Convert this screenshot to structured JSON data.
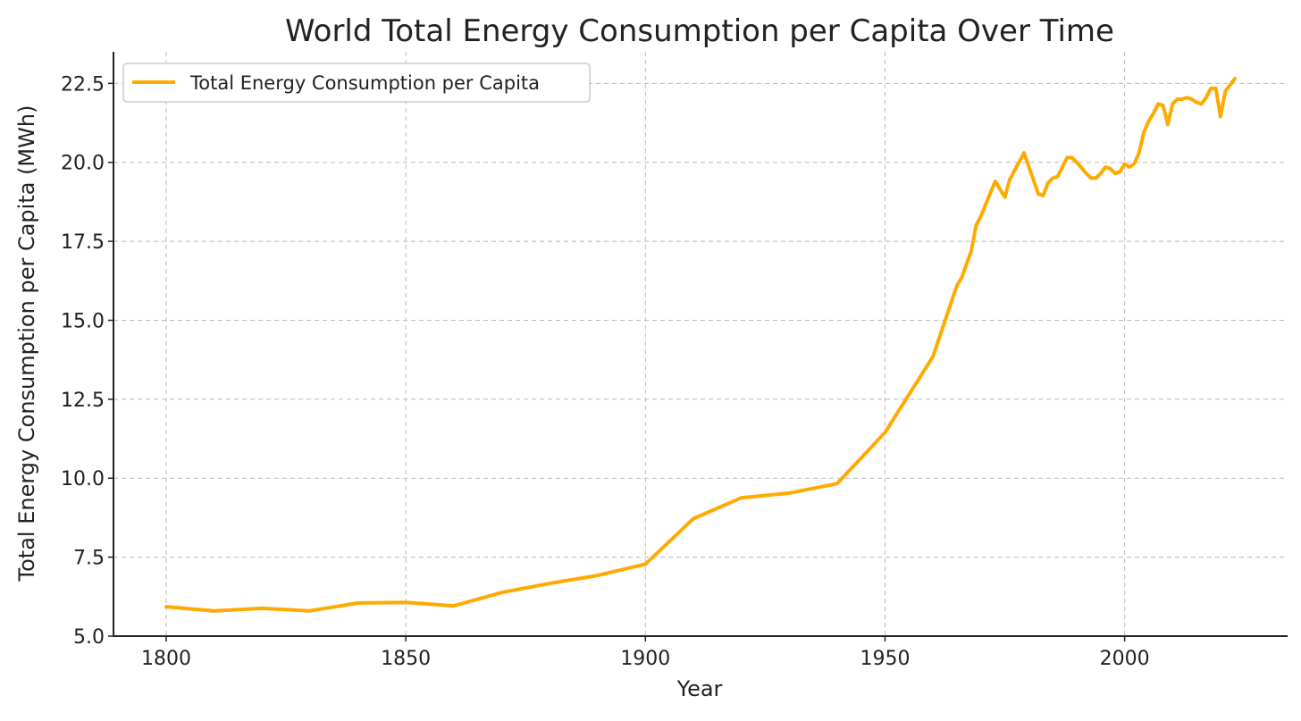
{
  "chart_data": {
    "type": "line",
    "title": "World Total Energy Consumption per Capita Over Time",
    "xlabel": "Year",
    "ylabel": "Total Energy Consumption per Capita (MWh)",
    "xlim": [
      1789,
      2034
    ],
    "ylim": [
      5.0,
      23.5
    ],
    "xticks": [
      1800,
      1850,
      1900,
      1950,
      2000
    ],
    "xtick_labels": [
      "1800",
      "1850",
      "1900",
      "1950",
      "2000"
    ],
    "yticks": [
      5.0,
      7.5,
      10.0,
      12.5,
      15.0,
      17.5,
      20.0,
      22.5
    ],
    "ytick_labels": [
      "5.0",
      "7.5",
      "10.0",
      "12.5",
      "15.0",
      "17.5",
      "20.0",
      "22.5"
    ],
    "grid": true,
    "legend_position": "top-left",
    "series": [
      {
        "name": "Total Energy Consumption per Capita",
        "color": "#FFAA00",
        "x": [
          1800,
          1810,
          1820,
          1830,
          1840,
          1850,
          1860,
          1870,
          1880,
          1890,
          1900,
          1910,
          1920,
          1930,
          1940,
          1950,
          1960,
          1965,
          1966,
          1968,
          1969,
          1970,
          1973,
          1975,
          1976,
          1979,
          1982,
          1983,
          1984,
          1985,
          1986,
          1988,
          1989,
          1990,
          1992,
          1993,
          1994,
          1995,
          1996,
          1997,
          1998,
          1999,
          2000,
          2001,
          2002,
          2003,
          2004,
          2005,
          2006,
          2007,
          2008,
          2009,
          2010,
          2011,
          2012,
          2013,
          2014,
          2015,
          2016,
          2017,
          2018,
          2019,
          2020,
          2021,
          2022,
          2023
        ],
        "y": [
          5.93,
          5.8,
          5.88,
          5.8,
          6.05,
          6.07,
          5.96,
          6.38,
          6.67,
          6.92,
          7.28,
          8.72,
          9.38,
          9.53,
          9.83,
          11.45,
          13.85,
          16.1,
          16.35,
          17.2,
          18.0,
          18.3,
          19.4,
          18.9,
          19.45,
          20.3,
          19.0,
          18.95,
          19.35,
          19.5,
          19.55,
          20.15,
          20.15,
          20.0,
          19.65,
          19.5,
          19.5,
          19.65,
          19.85,
          19.8,
          19.65,
          19.7,
          19.95,
          19.85,
          19.95,
          20.3,
          20.95,
          21.3,
          21.55,
          21.85,
          21.8,
          21.2,
          21.85,
          22.0,
          22.0,
          22.05,
          22.0,
          21.9,
          21.85,
          22.05,
          22.35,
          22.35,
          21.45,
          22.25,
          22.45,
          22.65
        ]
      }
    ]
  }
}
